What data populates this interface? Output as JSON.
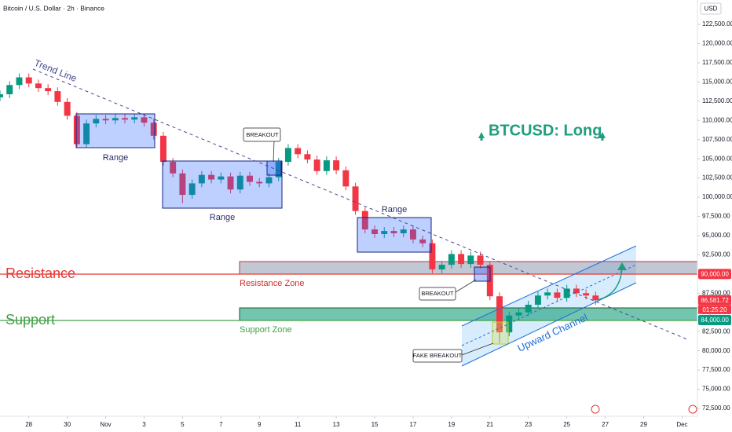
{
  "chart_data": {
    "type": "candlestick",
    "title": "Bitcoin / U.S. Dollar · 2h · Binance",
    "currency": "USD",
    "up_color": "#089981",
    "down_color": "#f23645",
    "xlim": [
      -1.5,
      34.8
    ],
    "ylim": [
      72500,
      122500
    ],
    "xticks": [
      {
        "value": 0,
        "label": "28"
      },
      {
        "value": 2,
        "label": "30"
      },
      {
        "value": 4,
        "label": "Nov"
      },
      {
        "value": 6,
        "label": "3"
      },
      {
        "value": 8,
        "label": "5"
      },
      {
        "value": 10,
        "label": "7"
      },
      {
        "value": 12,
        "label": "9"
      },
      {
        "value": 14,
        "label": "11"
      },
      {
        "value": 16,
        "label": "13"
      },
      {
        "value": 18,
        "label": "15"
      },
      {
        "value": 20,
        "label": "17"
      },
      {
        "value": 22,
        "label": "19"
      },
      {
        "value": 24,
        "label": "21"
      },
      {
        "value": 26,
        "label": "23"
      },
      {
        "value": 28,
        "label": "25"
      },
      {
        "value": 30,
        "label": "27"
      },
      {
        "value": 32,
        "label": "29"
      },
      {
        "value": 34,
        "label": "Dec"
      }
    ],
    "yticks": [
      {
        "value": 72500,
        "label": "72,500.00"
      },
      {
        "value": 75000,
        "label": "75,000.00"
      },
      {
        "value": 77500,
        "label": "77,500.00"
      },
      {
        "value": 80000,
        "label": "80,000.00"
      },
      {
        "value": 82500,
        "label": "82,500.00"
      },
      {
        "value": 85000,
        "label": "85,000.00"
      },
      {
        "value": 87500,
        "label": "87,500.00"
      },
      {
        "value": 92500,
        "label": "92,500.00"
      },
      {
        "value": 95000,
        "label": "95,000.00"
      },
      {
        "value": 97500,
        "label": "97,500.00"
      },
      {
        "value": 100000,
        "label": "100,000.00"
      },
      {
        "value": 102500,
        "label": "102,500.00"
      },
      {
        "value": 105000,
        "label": "105,000.00"
      },
      {
        "value": 107500,
        "label": "107,500.00"
      },
      {
        "value": 110000,
        "label": "110,000.00"
      },
      {
        "value": 112500,
        "label": "112,500.00"
      },
      {
        "value": 115000,
        "label": "115,000.00"
      },
      {
        "value": 117500,
        "label": "117,500.00"
      },
      {
        "value": 120000,
        "label": "120,000.00"
      },
      {
        "value": 122500,
        "label": "122,500.00"
      }
    ],
    "price_labels": [
      {
        "value": 90000,
        "label": "90,000.00",
        "color": "#f23645"
      },
      {
        "value": 86581.72,
        "label": "86,581.72",
        "color": "#f23645",
        "countdown": "01:25:20"
      },
      {
        "value": 84000,
        "label": "84,000.00",
        "color": "#089981"
      }
    ],
    "x": [
      -1.5,
      -1,
      -0.5,
      0,
      0.5,
      1,
      1.5,
      2,
      2.5,
      3,
      3.5,
      4,
      4.5,
      5,
      5.5,
      6,
      6.5,
      7,
      7.5,
      8,
      8.5,
      9,
      9.5,
      10,
      10.5,
      11,
      11.5,
      12,
      12.5,
      13,
      13.5,
      14,
      14.5,
      15,
      15.5,
      16,
      16.5,
      17,
      17.5,
      18,
      18.5,
      19,
      19.5,
      20,
      20.5,
      21,
      21.5,
      22,
      22.5,
      23,
      23.5,
      24,
      24.5,
      25,
      25.5,
      26,
      26.5,
      27,
      27.5,
      28,
      28.5,
      29,
      29.5
    ],
    "open": [
      113000,
      113400,
      114600,
      115600,
      114800,
      114200,
      113800,
      112400,
      110600,
      106900,
      109600,
      110200,
      110000,
      110300,
      110100,
      110400,
      109700,
      108000,
      104600,
      103100,
      100300,
      101800,
      102900,
      102300,
      102700,
      101000,
      102800,
      102000,
      101800,
      102600,
      104600,
      106400,
      105600,
      104900,
      103400,
      104800,
      103500,
      101400,
      98200,
      95800,
      95200,
      95600,
      95300,
      95800,
      94500,
      94000,
      90600,
      91200,
      92600,
      91300,
      92400,
      91200,
      87100,
      82400,
      84600,
      85000,
      86000,
      87200,
      87600,
      86900,
      88100,
      87500,
      87200
    ],
    "high": [
      113900,
      115100,
      116100,
      116100,
      115300,
      114700,
      114300,
      112900,
      111100,
      110100,
      110700,
      110700,
      110800,
      110800,
      110900,
      110900,
      110200,
      108500,
      105100,
      103600,
      102300,
      103400,
      103400,
      103200,
      103200,
      103300,
      103300,
      102500,
      103100,
      105100,
      106900,
      106900,
      106100,
      105400,
      105300,
      105300,
      104000,
      101900,
      98700,
      96300,
      96100,
      96100,
      96300,
      96300,
      95000,
      94500,
      91700,
      93100,
      93100,
      92900,
      92900,
      91700,
      87600,
      85100,
      85500,
      86500,
      87700,
      88100,
      88100,
      88600,
      88600,
      88000,
      87700
    ],
    "low": [
      112500,
      112900,
      114100,
      114300,
      113700,
      113300,
      111900,
      110100,
      106400,
      106400,
      109100,
      109500,
      109500,
      109600,
      109600,
      109200,
      107500,
      104100,
      102600,
      99200,
      99800,
      101300,
      101800,
      101800,
      100500,
      100500,
      101500,
      101300,
      101300,
      102100,
      104100,
      105100,
      104400,
      102900,
      102900,
      103000,
      100900,
      97700,
      95300,
      94700,
      94700,
      94800,
      94800,
      94000,
      93500,
      90100,
      90100,
      90700,
      90800,
      90800,
      90700,
      86600,
      81000,
      81900,
      84100,
      84500,
      85500,
      86700,
      86400,
      86400,
      87000,
      86700,
      86000
    ],
    "close": [
      113400,
      114600,
      115600,
      114800,
      114200,
      113800,
      112400,
      110600,
      106900,
      109600,
      110200,
      110000,
      110300,
      110100,
      110400,
      109700,
      108000,
      104600,
      103100,
      100300,
      101800,
      102900,
      102300,
      102700,
      101000,
      102800,
      102000,
      101800,
      102600,
      104600,
      106400,
      105600,
      104900,
      103400,
      104800,
      103500,
      101400,
      98200,
      95800,
      95200,
      95600,
      95300,
      95800,
      94500,
      94000,
      90600,
      91200,
      92600,
      91300,
      92400,
      91200,
      87100,
      82400,
      84600,
      85000,
      86000,
      87200,
      87600,
      86900,
      88100,
      87500,
      87200,
      86581.72
    ],
    "annotations": {
      "trend_line": "Trend Line",
      "range_1": "Range",
      "range_2": "Range",
      "range_3": "Range",
      "breakout_1": "BREAKOUT",
      "breakout_2": "BREAKOUT",
      "fake_breakout": "FAKE BREAKOUT",
      "resistance": "Resistance",
      "support": "Support",
      "resistance_zone": "Resistance Zone",
      "support_zone": "Support Zone",
      "upward_channel": "Upward Channel",
      "signal": "BTCUSD: Long"
    }
  }
}
